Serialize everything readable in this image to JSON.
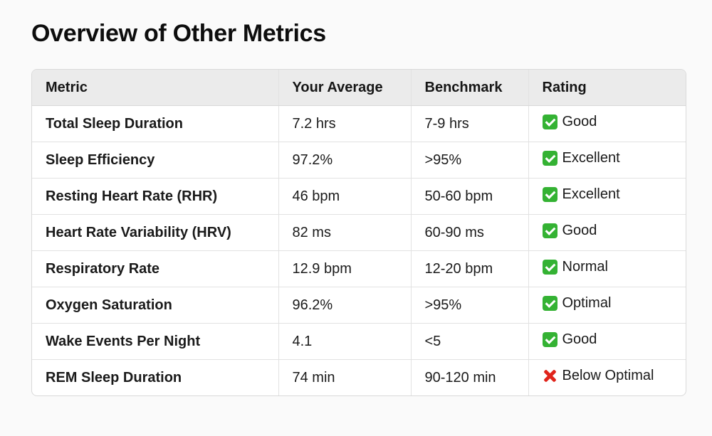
{
  "title": "Overview of Other Metrics",
  "table": {
    "headers": [
      "Metric",
      "Your Average",
      "Benchmark",
      "Rating"
    ],
    "rows": [
      {
        "metric": "Total Sleep Duration",
        "average": "7.2 hrs",
        "benchmark": "7-9 hrs",
        "rating": "Good",
        "icon": "check-mark-icon"
      },
      {
        "metric": "Sleep Efficiency",
        "average": "97.2%",
        "benchmark": ">95%",
        "rating": "Excellent",
        "icon": "check-mark-icon"
      },
      {
        "metric": "Resting Heart Rate (RHR)",
        "average": "46 bpm",
        "benchmark": "50-60 bpm",
        "rating": "Excellent",
        "icon": "check-mark-icon"
      },
      {
        "metric": "Heart Rate Variability (HRV)",
        "average": "82 ms",
        "benchmark": "60-90 ms",
        "rating": "Good",
        "icon": "check-mark-icon"
      },
      {
        "metric": "Respiratory Rate",
        "average": "12.9 bpm",
        "benchmark": "12-20 bpm",
        "rating": "Normal",
        "icon": "check-mark-icon"
      },
      {
        "metric": "Oxygen Saturation",
        "average": "96.2%",
        "benchmark": ">95%",
        "rating": "Optimal",
        "icon": "check-mark-icon"
      },
      {
        "metric": "Wake Events Per Night",
        "average": "4.1",
        "benchmark": "<5",
        "rating": "Good",
        "icon": "check-mark-icon"
      },
      {
        "metric": "REM Sleep Duration",
        "average": "74 min",
        "benchmark": "90-120 min",
        "rating": "Below Optimal",
        "icon": "cross-mark-icon"
      }
    ]
  },
  "colors": {
    "check": "#34b233",
    "cross": "#e0241b",
    "header_bg": "#ebebeb"
  }
}
